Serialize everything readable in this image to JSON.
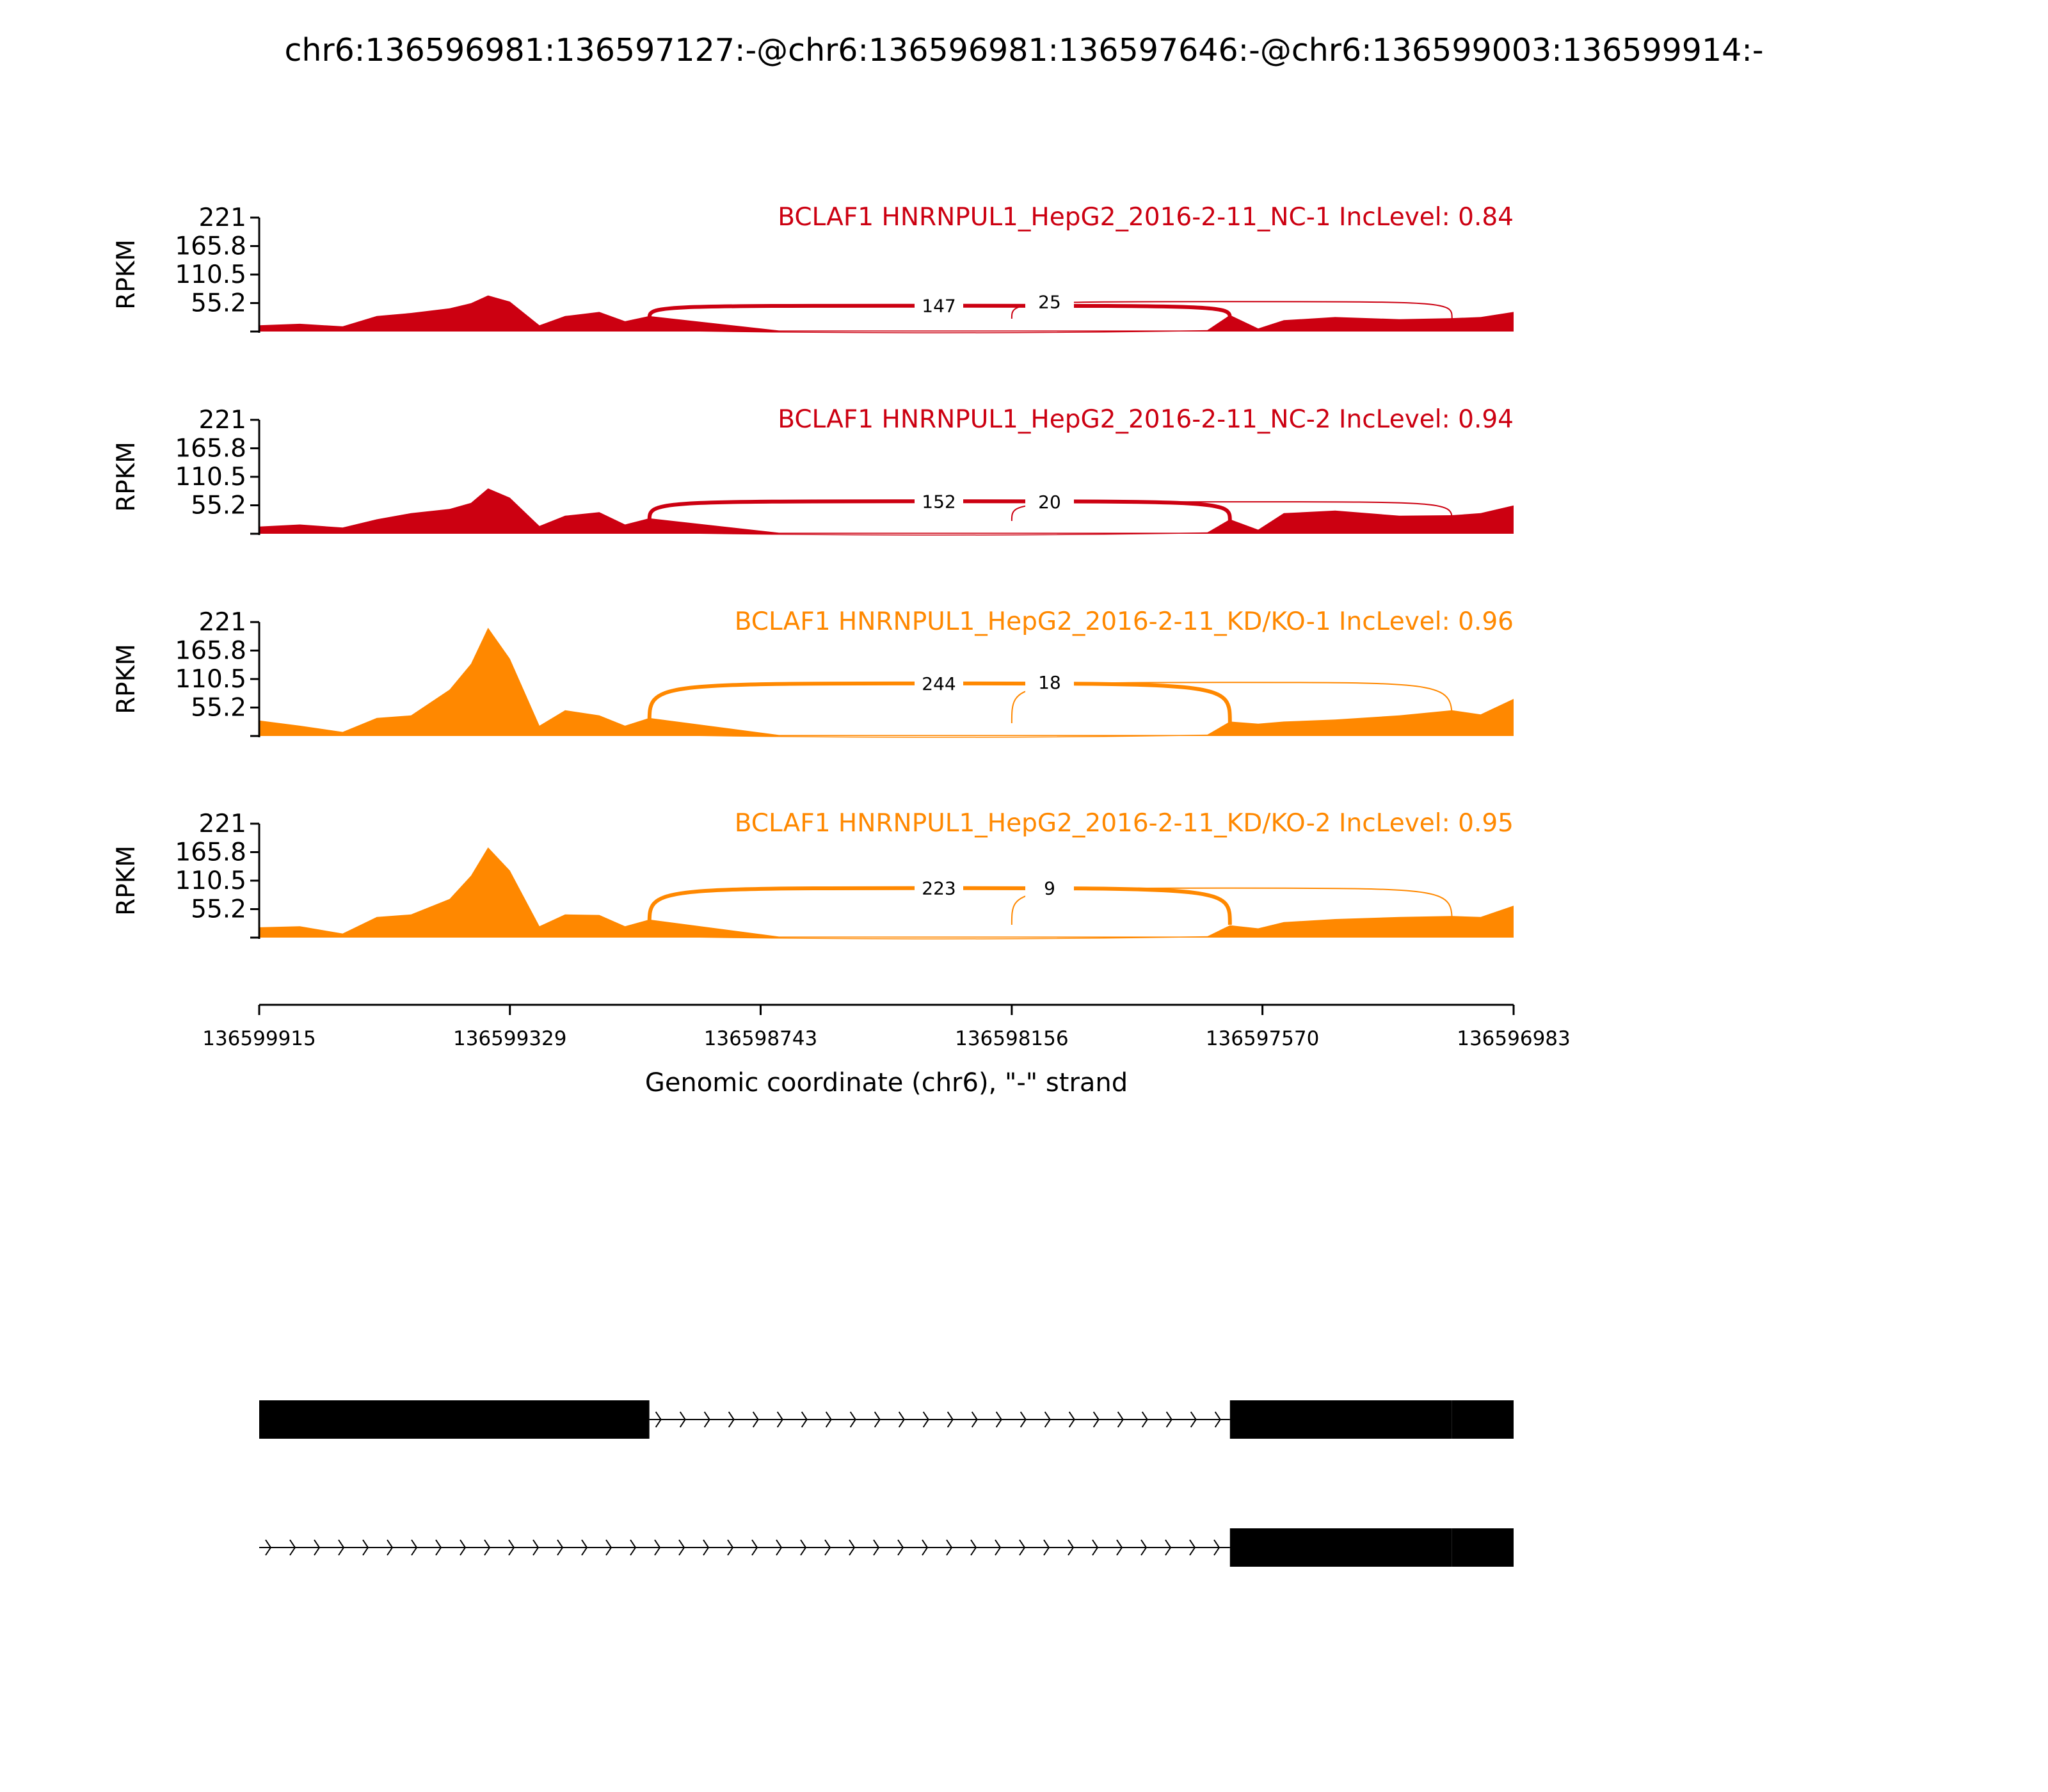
{
  "title": "chr6:136596981:136597127:-@chr6:136596981:136597646:-@chr6:136599003:136599914:-",
  "chart_data": {
    "type": "area",
    "title": "chr6:136596981:136597127:-@chr6:136596981:136597646:-@chr6:136599003:136599914:-",
    "xlabel": "Genomic coordinate (chr6), \"-\" strand",
    "ylabel": "RPKM",
    "x_reversed": true,
    "xlim": [
      136599915,
      136596983
    ],
    "x_ticks": [
      "136599915",
      "136599329",
      "136598743",
      "136598156",
      "136597570",
      "136596983"
    ],
    "ylim": [
      0,
      221
    ],
    "y_ticks": [
      "221",
      "165.8",
      "110.5",
      "55.2"
    ],
    "colors": {
      "NC": "#cc0011",
      "KD": "#ff8800",
      "gene": "#000000"
    },
    "coverage_x": [
      136599915,
      136599820,
      136599720,
      136599640,
      136599560,
      136599470,
      136599420,
      136599380,
      136599329,
      136599260,
      136599200,
      136599120,
      136599060,
      136599003,
      136598700,
      136598200,
      136597700,
      136597646,
      136597580,
      136597520,
      136597400,
      136597250,
      136597127,
      136597060,
      136596983
    ],
    "panels": [
      {
        "label": "BCLAF1 HNRNPUL1_HepG2_2016-2-11_NC-1 IncLevel: 0.84",
        "group": "NC",
        "coverage": [
          12,
          15,
          10,
          30,
          36,
          45,
          55,
          70,
          58,
          12,
          30,
          38,
          20,
          30,
          2,
          2,
          2,
          32,
          6,
          22,
          28,
          24,
          26,
          28,
          38
        ],
        "junctions": [
          {
            "count": "147",
            "x1": 136599003,
            "x2": 136597646,
            "peak": 50
          },
          {
            "count": "25",
            "x1": 136598156,
            "x2": 136597127,
            "peak": 58
          }
        ]
      },
      {
        "label": "BCLAF1 HNRNPUL1_HepG2_2016-2-11_NC-2 IncLevel: 0.94",
        "group": "NC",
        "coverage": [
          14,
          18,
          12,
          28,
          40,
          48,
          60,
          88,
          70,
          15,
          35,
          42,
          18,
          30,
          2,
          2,
          2,
          28,
          8,
          40,
          45,
          35,
          36,
          40,
          55
        ],
        "junctions": [
          {
            "count": "152",
            "x1": 136599003,
            "x2": 136597646,
            "peak": 63
          },
          {
            "count": "20",
            "x1": 136598156,
            "x2": 136597127,
            "peak": 62
          }
        ]
      },
      {
        "label": "BCLAF1 HNRNPUL1_HepG2_2016-2-11_KD/KO-1 IncLevel: 0.96",
        "group": "KD",
        "coverage": [
          30,
          20,
          8,
          35,
          40,
          90,
          140,
          210,
          150,
          20,
          50,
          40,
          20,
          35,
          2,
          2,
          2,
          28,
          24,
          28,
          32,
          40,
          50,
          42,
          72
        ],
        "junctions": [
          {
            "count": "244",
            "x1": 136599003,
            "x2": 136597646,
            "peak": 102
          },
          {
            "count": "18",
            "x1": 136598156,
            "x2": 136597127,
            "peak": 104
          }
        ]
      },
      {
        "label": "BCLAF1 HNRNPUL1_HepG2_2016-2-11_KD/KO-2 IncLevel: 0.95",
        "group": "KD",
        "coverage": [
          20,
          22,
          8,
          40,
          45,
          75,
          120,
          175,
          130,
          22,
          45,
          44,
          22,
          35,
          2,
          2,
          2,
          24,
          18,
          30,
          36,
          40,
          42,
          40,
          62
        ],
        "junctions": [
          {
            "count": "223",
            "x1": 136599003,
            "x2": 136597646,
            "peak": 96
          },
          {
            "count": "9",
            "x1": 136598156,
            "x2": 136597127,
            "peak": 96
          }
        ]
      }
    ],
    "isoforms": [
      {
        "exons": [
          [
            136599915,
            136599003
          ],
          [
            136597646,
            136597127
          ],
          [
            136597127,
            136596983
          ]
        ],
        "introns": [
          [
            136599003,
            136597646
          ]
        ]
      },
      {
        "exons": [
          [
            136597646,
            136597127
          ],
          [
            136597127,
            136596983
          ]
        ],
        "introns": [
          [
            136599915,
            136597646
          ]
        ]
      }
    ]
  }
}
